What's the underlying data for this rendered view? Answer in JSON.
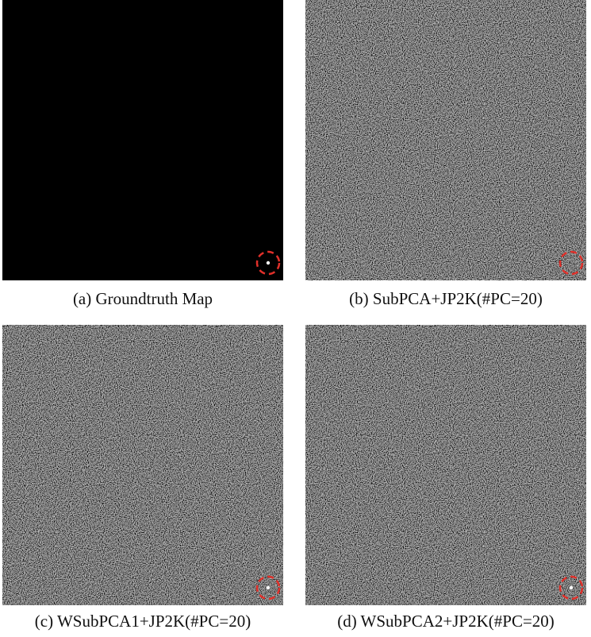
{
  "panels": [
    {
      "caption": "(a) Groundtruth Map"
    },
    {
      "caption": "(b) SubPCA+JP2K(#PC=20)"
    },
    {
      "caption": "(c) WSubPCA1+JP2K(#PC=20)"
    },
    {
      "caption": "(d) WSubPCA2+JP2K(#PC=20)"
    }
  ]
}
